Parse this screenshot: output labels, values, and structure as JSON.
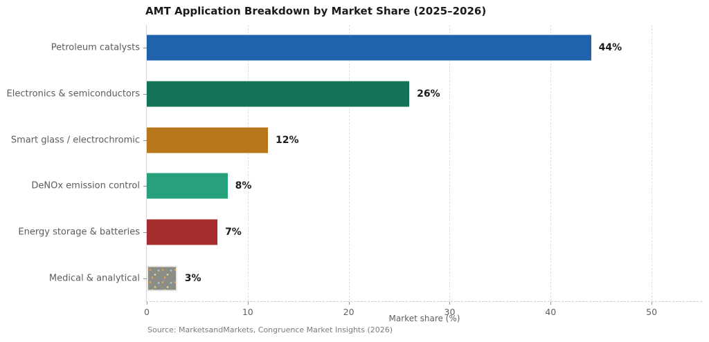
{
  "title": "AMT Application Breakdown by Market Share (2025–2026)",
  "source_note": "Source: MarketsandMarkets, Congruence Market Insights (2026)",
  "chart_data": {
    "type": "bar",
    "orientation": "horizontal",
    "title": "AMT Application Breakdown by Market Share (2025–2026)",
    "categories": [
      "Petroleum catalysts",
      "Electronics & semiconductors",
      "Smart glass / electrochromic",
      "DeNOx emission control",
      "Energy storage & batteries",
      "Medical & analytical"
    ],
    "values": [
      44,
      26,
      12,
      8,
      7,
      3
    ],
    "value_labels": [
      "44%",
      "26%",
      "12%",
      "8%",
      "7%",
      "3%"
    ],
    "bar_colors": [
      "#2162ac",
      "#15735a",
      "#b9771c",
      "#26a17c",
      "#a62c2c",
      "#8d8d88"
    ],
    "textured_bar_index": 5,
    "xlabel": "Market share (%)",
    "ylabel": "",
    "xlim": [
      0,
      55
    ],
    "xticks": [
      0,
      10,
      20,
      30,
      40,
      50
    ],
    "grid": "vertical dashed gridlines at x ticks",
    "legend": "none",
    "annotation_note": "bold value labels at right end of each bar"
  }
}
